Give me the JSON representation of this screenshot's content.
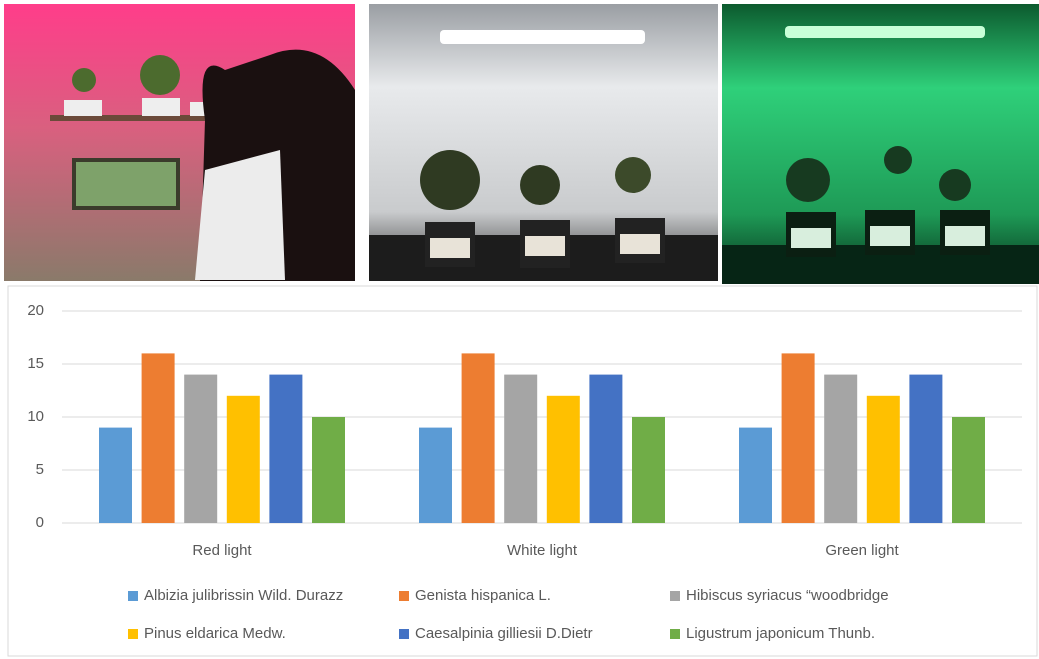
{
  "chart_data": {
    "type": "bar",
    "categories": [
      "Red light",
      "White light",
      "Green light"
    ],
    "series": [
      {
        "name": "Albizia julibrissin Wild. Durazz",
        "color": "#5b9bd5",
        "values": [
          9,
          9,
          9
        ]
      },
      {
        "name": "Genista hispanica L.",
        "color": "#ed7d31",
        "values": [
          16,
          16,
          16
        ]
      },
      {
        "name": "Hibiscus syriacus “woodbridge",
        "color": "#a5a5a5",
        "values": [
          14,
          14,
          14
        ]
      },
      {
        "name": "Pinus eldarica Medw.",
        "color": "#ffc000",
        "values": [
          12,
          12,
          12
        ]
      },
      {
        "name": "Caesalpinia gilliesii D.Dietr",
        "color": "#4472c4",
        "values": [
          14,
          14,
          14
        ]
      },
      {
        "name": "Ligustrum japonicum Thunb.",
        "color": "#70ad47",
        "values": [
          10,
          10,
          10
        ]
      }
    ],
    "ylim": [
      0,
      20
    ],
    "yticks": [
      0,
      5,
      10,
      15,
      20
    ],
    "grid": true
  }
}
